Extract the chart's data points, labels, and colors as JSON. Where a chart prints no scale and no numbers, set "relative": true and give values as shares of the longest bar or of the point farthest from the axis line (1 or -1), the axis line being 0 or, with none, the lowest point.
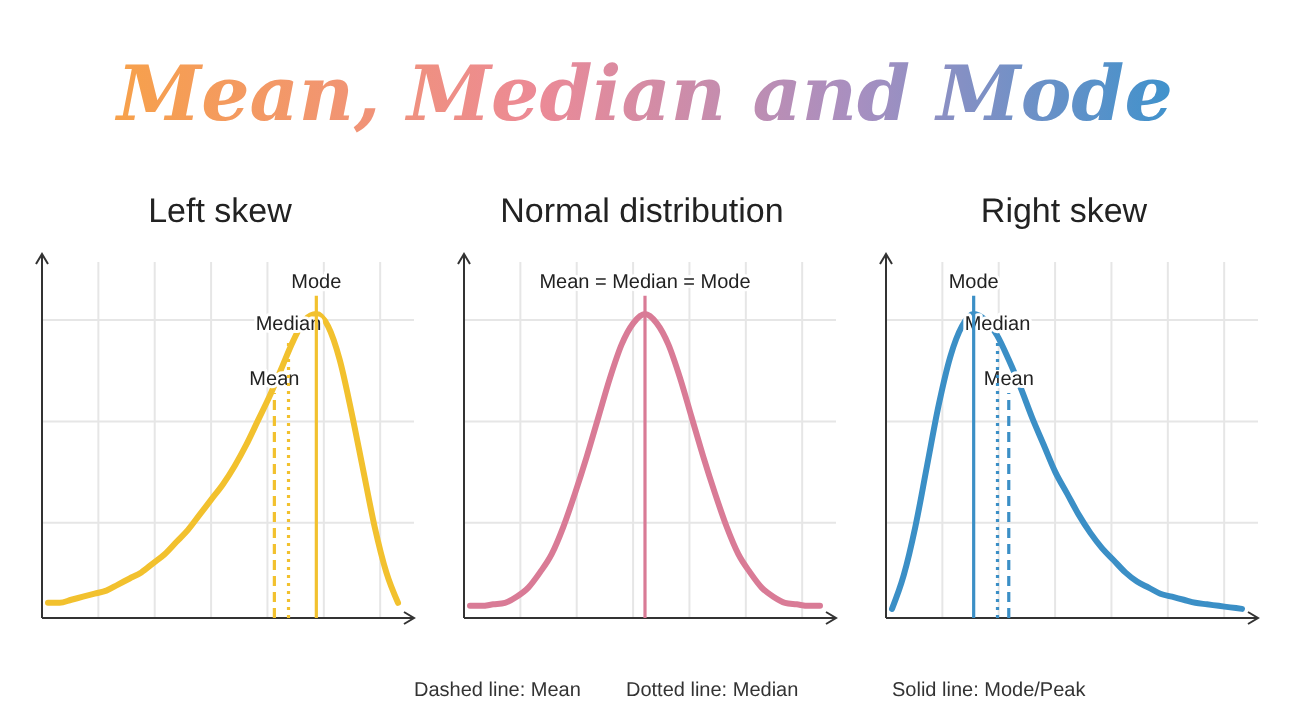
{
  "chart_data": [
    {
      "type": "other",
      "title": "Mean, Median and Mode",
      "annotations": [
        "Dashed line: Mean",
        "Dotted line: Median",
        "Solid line: Mode/Peak"
      ]
    },
    {
      "type": "line",
      "title": "Left skew",
      "relative": true,
      "grid": true,
      "categories": [
        null,
        null,
        null,
        null,
        null,
        null,
        null,
        null,
        null,
        null,
        null,
        null,
        null,
        null,
        null,
        null,
        null,
        null,
        null,
        null,
        null,
        null,
        null,
        null,
        null,
        null,
        null,
        null,
        null,
        null,
        null
      ],
      "series": [
        {
          "color": "#f2c12e",
          "values": [
            0.05,
            0.05,
            0.06,
            0.07,
            0.08,
            0.09,
            0.11,
            0.13,
            0.15,
            0.18,
            0.21,
            0.25,
            0.29,
            0.34,
            0.39,
            0.44,
            0.5,
            0.57,
            0.65,
            0.73,
            0.82,
            0.91,
            0.98,
            1.0,
            0.96,
            0.85,
            0.68,
            0.49,
            0.3,
            0.15,
            0.05
          ]
        }
      ],
      "annotations": [
        "Mean",
        "Median",
        "Mode"
      ]
    },
    {
      "type": "line",
      "title": "Normal distribution",
      "relative": true,
      "grid": true,
      "categories": [
        null,
        null,
        null,
        null,
        null,
        null,
        null,
        null,
        null,
        null,
        null,
        null,
        null,
        null,
        null,
        null,
        null,
        null,
        null,
        null,
        null,
        null,
        null,
        null,
        null,
        null,
        null,
        null,
        null,
        null,
        null
      ],
      "series": [
        {
          "color": "#d97b96",
          "values": [
            0.04,
            0.04,
            0.045,
            0.05,
            0.07,
            0.1,
            0.15,
            0.21,
            0.3,
            0.41,
            0.53,
            0.66,
            0.79,
            0.9,
            0.97,
            1.0,
            0.97,
            0.9,
            0.79,
            0.66,
            0.53,
            0.41,
            0.3,
            0.21,
            0.15,
            0.1,
            0.07,
            0.05,
            0.045,
            0.04,
            0.04
          ]
        }
      ],
      "annotations": [
        "Mean = Median = Mode"
      ]
    },
    {
      "type": "line",
      "title": "Right skew",
      "relative": true,
      "grid": true,
      "categories": [
        null,
        null,
        null,
        null,
        null,
        null,
        null,
        null,
        null,
        null,
        null,
        null,
        null,
        null,
        null,
        null,
        null,
        null,
        null,
        null,
        null,
        null,
        null,
        null,
        null,
        null,
        null,
        null,
        null,
        null,
        null
      ],
      "series": [
        {
          "color": "#3b8fc6",
          "values": [
            0.03,
            0.14,
            0.3,
            0.5,
            0.7,
            0.86,
            0.96,
            1.0,
            0.98,
            0.93,
            0.85,
            0.76,
            0.66,
            0.57,
            0.48,
            0.41,
            0.34,
            0.28,
            0.23,
            0.19,
            0.15,
            0.12,
            0.1,
            0.08,
            0.07,
            0.06,
            0.05,
            0.045,
            0.04,
            0.035,
            0.03
          ]
        }
      ],
      "annotations": [
        "Mean",
        "Median",
        "Mode"
      ]
    }
  ]
}
